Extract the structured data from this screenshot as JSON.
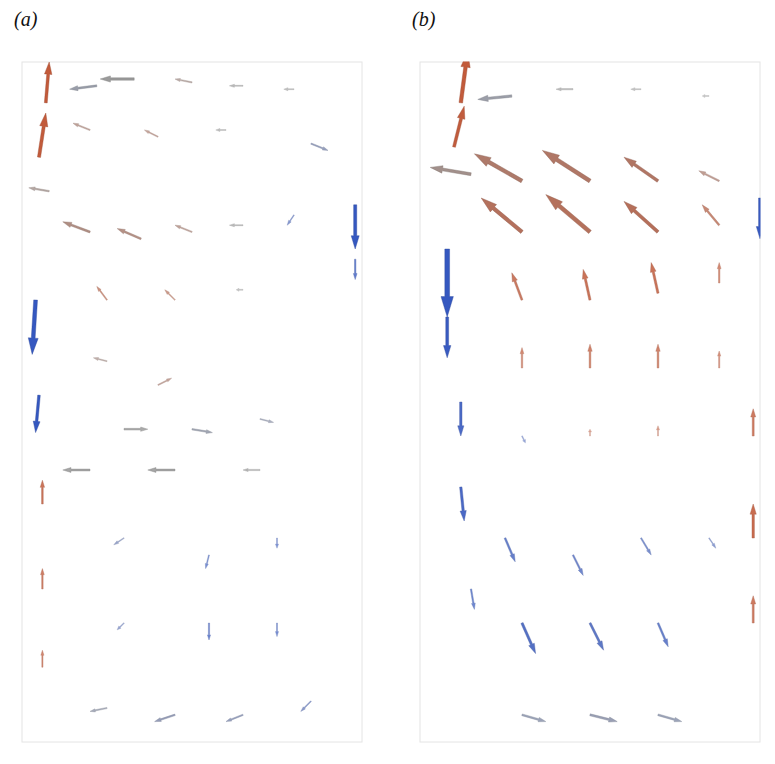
{
  "chart_data": [
    {
      "type": "quiver",
      "title": "(a)",
      "xlim": [
        0,
        1
      ],
      "ylim": [
        0,
        2
      ],
      "tick_labels": false,
      "x": [
        0.07,
        0.05,
        0.22,
        0.33,
        0.5,
        0.65,
        0.8,
        0.2,
        0.4,
        0.6,
        0.85,
        0.98,
        0.98,
        0.08,
        0.2,
        0.35,
        0.5,
        0.65,
        0.8,
        0.04,
        0.25,
        0.45,
        0.65,
        0.05,
        0.25,
        0.4,
        0.3,
        0.5,
        0.7,
        0.2,
        0.45,
        0.7,
        0.06,
        0.06,
        0.06,
        0.3,
        0.55,
        0.75,
        0.55,
        0.75,
        0.3,
        0.25,
        0.45,
        0.65,
        0.85
      ],
      "y": [
        1.88,
        1.72,
        1.93,
        1.95,
        1.94,
        1.93,
        1.92,
        1.8,
        1.78,
        1.8,
        1.76,
        1.58,
        1.42,
        1.62,
        1.5,
        1.48,
        1.5,
        1.52,
        1.55,
        1.3,
        1.3,
        1.3,
        1.33,
        1.02,
        1.12,
        1.05,
        0.92,
        0.92,
        0.95,
        0.8,
        0.8,
        0.8,
        0.7,
        0.45,
        0.22,
        0.6,
        0.55,
        0.6,
        0.35,
        0.35,
        0.35,
        0.1,
        0.08,
        0.08,
        0.12
      ],
      "u": [
        0.01,
        0.02,
        -0.08,
        -0.1,
        -0.05,
        -0.04,
        -0.03,
        -0.05,
        -0.04,
        -0.03,
        0.05,
        0.0,
        0.0,
        -0.06,
        -0.08,
        -0.07,
        -0.05,
        -0.04,
        -0.02,
        -0.01,
        -0.03,
        -0.03,
        -0.02,
        -0.01,
        -0.04,
        0.04,
        0.07,
        0.06,
        0.04,
        -0.08,
        -0.08,
        -0.05,
        0.0,
        0.0,
        0.0,
        -0.03,
        -0.01,
        0.0,
        0.0,
        0.0,
        -0.02,
        -0.05,
        -0.06,
        -0.05,
        -0.03
      ],
      "v": [
        0.12,
        0.13,
        -0.01,
        0.0,
        0.01,
        0.0,
        0.0,
        0.02,
        0.02,
        0.0,
        -0.02,
        -0.13,
        -0.06,
        0.01,
        0.03,
        0.03,
        0.02,
        0.0,
        -0.03,
        -0.16,
        0.04,
        0.03,
        0.0,
        -0.11,
        0.01,
        0.02,
        0.0,
        -0.01,
        -0.01,
        0.0,
        0.0,
        0.0,
        0.07,
        0.06,
        0.05,
        -0.02,
        -0.04,
        -0.03,
        -0.05,
        -0.04,
        -0.02,
        -0.01,
        -0.02,
        -0.02,
        -0.03
      ]
    },
    {
      "type": "quiver",
      "title": "(b)",
      "xlim": [
        0,
        1
      ],
      "ylim": [
        0,
        2
      ],
      "tick_labels": false,
      "x": [
        0.12,
        0.1,
        0.27,
        0.45,
        0.65,
        0.85,
        0.15,
        0.3,
        0.5,
        0.7,
        0.88,
        0.3,
        0.5,
        0.7,
        0.88,
        0.08,
        0.08,
        0.3,
        0.5,
        0.7,
        0.88,
        1.0,
        0.3,
        0.5,
        0.7,
        0.88,
        0.12,
        0.12,
        0.3,
        0.5,
        0.7,
        0.98,
        0.98,
        0.98,
        0.25,
        0.45,
        0.65,
        0.85,
        0.3,
        0.5,
        0.7,
        0.3,
        0.5,
        0.7,
        0.15
      ],
      "y": [
        1.88,
        1.75,
        1.9,
        1.92,
        1.92,
        1.9,
        1.67,
        1.65,
        1.65,
        1.65,
        1.65,
        1.5,
        1.5,
        1.5,
        1.52,
        1.45,
        1.25,
        1.3,
        1.3,
        1.32,
        1.35,
        1.6,
        1.1,
        1.1,
        1.1,
        1.1,
        1.0,
        0.75,
        0.9,
        0.9,
        0.9,
        0.9,
        0.6,
        0.35,
        0.6,
        0.55,
        0.6,
        0.6,
        0.35,
        0.35,
        0.35,
        0.08,
        0.08,
        0.08,
        0.45
      ],
      "u": [
        0.02,
        0.03,
        -0.1,
        -0.05,
        -0.03,
        -0.02,
        -0.12,
        -0.14,
        -0.14,
        -0.1,
        -0.06,
        -0.12,
        -0.13,
        -0.1,
        -0.05,
        0.0,
        0.0,
        -0.03,
        -0.02,
        -0.02,
        0.0,
        0.0,
        0.0,
        0.0,
        0.0,
        0.0,
        0.0,
        0.01,
        0.01,
        0.0,
        0.0,
        0.0,
        0.0,
        0.0,
        0.03,
        0.03,
        0.03,
        0.02,
        0.04,
        0.04,
        0.03,
        0.07,
        0.08,
        0.07,
        0.01
      ],
      "v": [
        0.15,
        0.12,
        -0.01,
        0.0,
        0.0,
        0.0,
        0.02,
        0.08,
        0.09,
        0.07,
        0.03,
        0.1,
        0.11,
        0.09,
        0.06,
        -0.2,
        -0.12,
        0.08,
        0.09,
        0.09,
        0.06,
        -0.12,
        0.06,
        0.07,
        0.07,
        0.05,
        -0.1,
        -0.1,
        -0.02,
        0.02,
        0.03,
        0.08,
        0.1,
        0.08,
        -0.07,
        -0.06,
        -0.05,
        -0.03,
        -0.09,
        -0.08,
        -0.07,
        -0.02,
        -0.02,
        -0.02,
        -0.06
      ]
    }
  ]
}
